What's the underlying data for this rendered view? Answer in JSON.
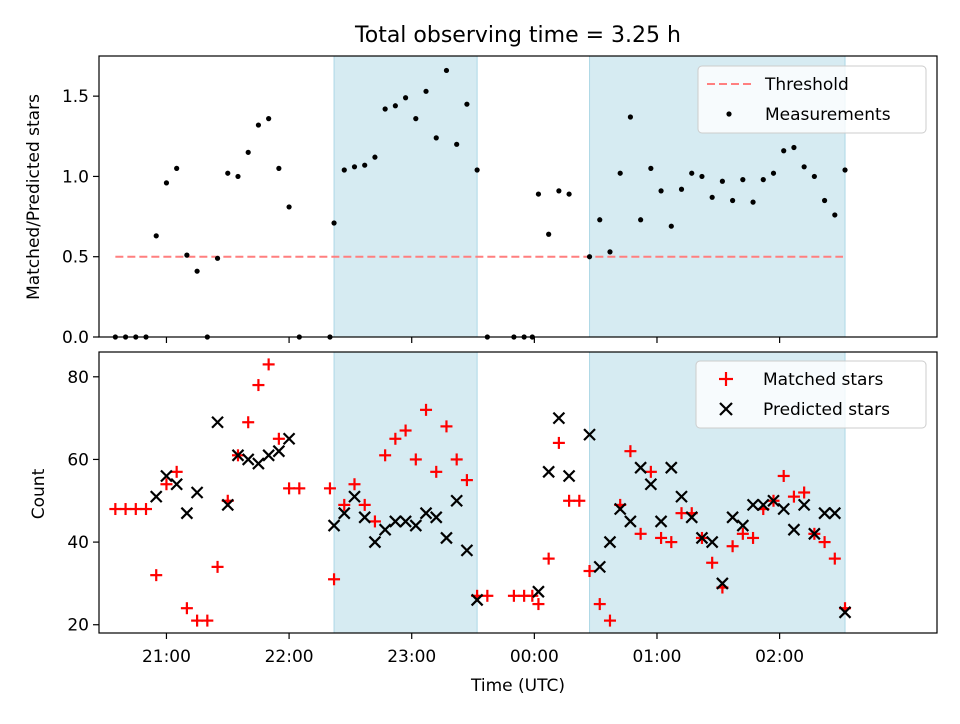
{
  "title": "Total observing time = 3.25 h",
  "colors": {
    "shade": "#add8e6",
    "threshold": "#ff7f7f",
    "measurements": "#000000",
    "matched": "#ff0000",
    "predicted": "#000000"
  },
  "chart_data": [
    {
      "type": "scatter",
      "ylabel": "Matched/Predicted stars",
      "ylim": [
        0,
        1.75
      ],
      "yticks": [
        0.0,
        0.5,
        1.0,
        1.5
      ],
      "ytick_labels": [
        "0.0",
        "0.5",
        "1.0",
        "1.5"
      ],
      "xlim": [
        "20:27",
        "03:17"
      ],
      "xticks": [
        "21:00",
        "22:00",
        "23:00",
        "00:00",
        "01:00",
        "02:00"
      ],
      "grid": false,
      "legend_position": "upper right",
      "threshold": {
        "name": "Threshold",
        "value": 0.5,
        "x_start": "20:35",
        "x_end": "02:31"
      },
      "shaded_intervals": [
        [
          "22:22",
          "23:32"
        ],
        [
          "00:27",
          "02:32"
        ]
      ],
      "series": [
        {
          "name": "Measurements",
          "marker": "dot",
          "points": [
            [
              "20:35",
              0.0
            ],
            [
              "20:40",
              0.0
            ],
            [
              "20:45",
              0.0
            ],
            [
              "20:50",
              0.0
            ],
            [
              "20:55",
              0.63
            ],
            [
              "21:00",
              0.96
            ],
            [
              "21:05",
              1.05
            ],
            [
              "21:10",
              0.51
            ],
            [
              "21:15",
              0.41
            ],
            [
              "21:20",
              0.0
            ],
            [
              "21:25",
              0.49
            ],
            [
              "21:30",
              1.02
            ],
            [
              "21:35",
              1.0
            ],
            [
              "21:40",
              1.15
            ],
            [
              "21:45",
              1.32
            ],
            [
              "21:50",
              1.36
            ],
            [
              "21:55",
              1.05
            ],
            [
              "22:00",
              0.81
            ],
            [
              "22:05",
              0.0
            ],
            [
              "22:20",
              0.0
            ],
            [
              "22:22",
              0.71
            ],
            [
              "22:27",
              1.04
            ],
            [
              "22:32",
              1.06
            ],
            [
              "22:37",
              1.07
            ],
            [
              "22:42",
              1.12
            ],
            [
              "22:47",
              1.42
            ],
            [
              "22:52",
              1.44
            ],
            [
              "22:57",
              1.49
            ],
            [
              "23:02",
              1.36
            ],
            [
              "23:07",
              1.53
            ],
            [
              "23:12",
              1.24
            ],
            [
              "23:17",
              1.66
            ],
            [
              "23:22",
              1.2
            ],
            [
              "23:27",
              1.45
            ],
            [
              "23:32",
              1.04
            ],
            [
              "23:37",
              0.0
            ],
            [
              "23:50",
              0.0
            ],
            [
              "23:55",
              0.0
            ],
            [
              "23:59",
              0.0
            ],
            [
              "00:02",
              0.89
            ],
            [
              "00:07",
              0.64
            ],
            [
              "00:12",
              0.91
            ],
            [
              "00:17",
              0.89
            ],
            [
              "00:27",
              0.5
            ],
            [
              "00:32",
              0.73
            ],
            [
              "00:37",
              0.53
            ],
            [
              "00:42",
              1.02
            ],
            [
              "00:47",
              1.37
            ],
            [
              "00:52",
              0.73
            ],
            [
              "00:57",
              1.05
            ],
            [
              "01:02",
              0.91
            ],
            [
              "01:07",
              0.69
            ],
            [
              "01:12",
              0.92
            ],
            [
              "01:17",
              1.02
            ],
            [
              "01:22",
              1.0
            ],
            [
              "01:27",
              0.87
            ],
            [
              "01:32",
              0.97
            ],
            [
              "01:37",
              0.85
            ],
            [
              "01:42",
              0.98
            ],
            [
              "01:47",
              0.84
            ],
            [
              "01:52",
              0.98
            ],
            [
              "01:57",
              1.02
            ],
            [
              "02:02",
              1.16
            ],
            [
              "02:07",
              1.18
            ],
            [
              "02:12",
              1.06
            ],
            [
              "02:17",
              1.0
            ],
            [
              "02:22",
              0.85
            ],
            [
              "02:27",
              0.76
            ],
            [
              "02:32",
              1.04
            ]
          ]
        }
      ]
    },
    {
      "type": "scatter",
      "xlabel": "Time (UTC)",
      "ylabel": "Count",
      "ylim": [
        18,
        86
      ],
      "yticks": [
        20,
        40,
        60,
        80
      ],
      "ytick_labels": [
        "20",
        "40",
        "60",
        "80"
      ],
      "xlim": [
        "20:27",
        "03:17"
      ],
      "xticks": [
        "21:00",
        "22:00",
        "23:00",
        "00:00",
        "01:00",
        "02:00"
      ],
      "xtick_labels": [
        "21:00",
        "22:00",
        "23:00",
        "00:00",
        "01:00",
        "02:00"
      ],
      "grid": false,
      "legend_position": "upper right",
      "shaded_intervals": [
        [
          "22:22",
          "23:32"
        ],
        [
          "00:27",
          "02:32"
        ]
      ],
      "series": [
        {
          "name": "Matched stars",
          "marker": "plus",
          "points": [
            [
              "20:35",
              48
            ],
            [
              "20:40",
              48
            ],
            [
              "20:45",
              48
            ],
            [
              "20:50",
              48
            ],
            [
              "20:55",
              32
            ],
            [
              "21:00",
              54
            ],
            [
              "21:05",
              57
            ],
            [
              "21:10",
              24
            ],
            [
              "21:15",
              21
            ],
            [
              "21:20",
              21
            ],
            [
              "21:25",
              34
            ],
            [
              "21:30",
              50
            ],
            [
              "21:35",
              61
            ],
            [
              "21:40",
              69
            ],
            [
              "21:45",
              78
            ],
            [
              "21:50",
              83
            ],
            [
              "21:55",
              65
            ],
            [
              "22:00",
              53
            ],
            [
              "22:05",
              53
            ],
            [
              "22:20",
              53
            ],
            [
              "22:22",
              31
            ],
            [
              "22:27",
              49
            ],
            [
              "22:32",
              54
            ],
            [
              "22:37",
              49
            ],
            [
              "22:42",
              45
            ],
            [
              "22:47",
              61
            ],
            [
              "22:52",
              65
            ],
            [
              "22:57",
              67
            ],
            [
              "23:02",
              60
            ],
            [
              "23:07",
              72
            ],
            [
              "23:12",
              57
            ],
            [
              "23:17",
              68
            ],
            [
              "23:22",
              60
            ],
            [
              "23:27",
              55
            ],
            [
              "23:32",
              27
            ],
            [
              "23:37",
              27
            ],
            [
              "23:50",
              27
            ],
            [
              "23:55",
              27
            ],
            [
              "23:59",
              27
            ],
            [
              "00:02",
              25
            ],
            [
              "00:07",
              36
            ],
            [
              "00:12",
              64
            ],
            [
              "00:17",
              50
            ],
            [
              "00:22",
              50
            ],
            [
              "00:27",
              33
            ],
            [
              "00:32",
              25
            ],
            [
              "00:37",
              21
            ],
            [
              "00:42",
              49
            ],
            [
              "00:47",
              62
            ],
            [
              "00:52",
              42
            ],
            [
              "00:57",
              57
            ],
            [
              "01:02",
              41
            ],
            [
              "01:07",
              40
            ],
            [
              "01:12",
              47
            ],
            [
              "01:17",
              47
            ],
            [
              "01:22",
              41
            ],
            [
              "01:27",
              35
            ],
            [
              "01:32",
              29
            ],
            [
              "01:37",
              39
            ],
            [
              "01:42",
              42
            ],
            [
              "01:47",
              41
            ],
            [
              "01:52",
              48
            ],
            [
              "01:57",
              50
            ],
            [
              "02:02",
              56
            ],
            [
              "02:07",
              51
            ],
            [
              "02:12",
              52
            ],
            [
              "02:17",
              42
            ],
            [
              "02:22",
              40
            ],
            [
              "02:27",
              36
            ],
            [
              "02:32",
              24
            ]
          ]
        },
        {
          "name": "Predicted stars",
          "marker": "x",
          "points": [
            [
              "20:55",
              51
            ],
            [
              "21:00",
              56
            ],
            [
              "21:05",
              54
            ],
            [
              "21:10",
              47
            ],
            [
              "21:15",
              52
            ],
            [
              "21:25",
              69
            ],
            [
              "21:30",
              49
            ],
            [
              "21:35",
              61
            ],
            [
              "21:40",
              60
            ],
            [
              "21:45",
              59
            ],
            [
              "21:50",
              61
            ],
            [
              "21:55",
              62
            ],
            [
              "22:00",
              65
            ],
            [
              "22:22",
              44
            ],
            [
              "22:27",
              47
            ],
            [
              "22:32",
              51
            ],
            [
              "22:37",
              46
            ],
            [
              "22:42",
              40
            ],
            [
              "22:47",
              43
            ],
            [
              "22:52",
              45
            ],
            [
              "22:57",
              45
            ],
            [
              "23:02",
              44
            ],
            [
              "23:07",
              47
            ],
            [
              "23:12",
              46
            ],
            [
              "23:17",
              41
            ],
            [
              "23:22",
              50
            ],
            [
              "23:27",
              38
            ],
            [
              "23:32",
              26
            ],
            [
              "00:02",
              28
            ],
            [
              "00:07",
              57
            ],
            [
              "00:12",
              70
            ],
            [
              "00:17",
              56
            ],
            [
              "00:27",
              66
            ],
            [
              "00:32",
              34
            ],
            [
              "00:37",
              40
            ],
            [
              "00:42",
              48
            ],
            [
              "00:47",
              45
            ],
            [
              "00:52",
              58
            ],
            [
              "00:57",
              54
            ],
            [
              "01:02",
              45
            ],
            [
              "01:07",
              58
            ],
            [
              "01:12",
              51
            ],
            [
              "01:17",
              46
            ],
            [
              "01:22",
              41
            ],
            [
              "01:27",
              40
            ],
            [
              "01:32",
              30
            ],
            [
              "01:37",
              46
            ],
            [
              "01:42",
              44
            ],
            [
              "01:47",
              49
            ],
            [
              "01:52",
              49
            ],
            [
              "01:57",
              50
            ],
            [
              "02:02",
              48
            ],
            [
              "02:07",
              43
            ],
            [
              "02:12",
              49
            ],
            [
              "02:17",
              42
            ],
            [
              "02:22",
              47
            ],
            [
              "02:27",
              47
            ],
            [
              "02:32",
              23
            ]
          ]
        }
      ]
    }
  ]
}
